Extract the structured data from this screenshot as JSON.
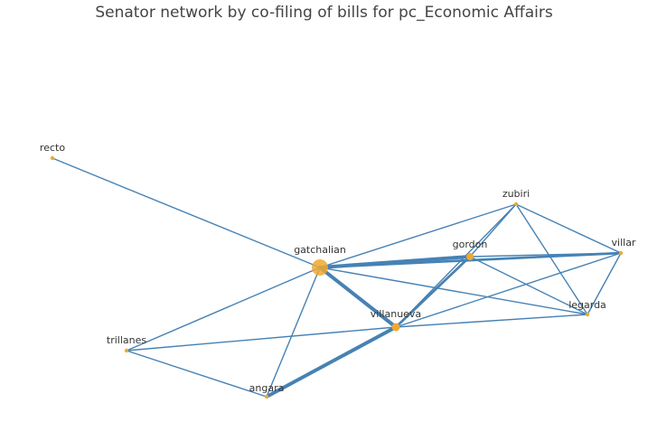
{
  "title": "Senator network by co-filing of bills for pc_Economic Affairs",
  "colors": {
    "edge": "#4682b4",
    "node": "#f0a830",
    "label": "#333333",
    "title": "#444444"
  },
  "nodes": [
    {
      "id": "recto",
      "label": "recto",
      "weight": 1
    },
    {
      "id": "gatchalian",
      "label": "gatchalian",
      "weight": 5
    },
    {
      "id": "zubiri",
      "label": "zubiri",
      "weight": 1
    },
    {
      "id": "gordon",
      "label": "gordon",
      "weight": 2
    },
    {
      "id": "villar",
      "label": "villar",
      "weight": 1
    },
    {
      "id": "legarda",
      "label": "legarda",
      "weight": 1
    },
    {
      "id": "villanueva",
      "label": "villanueva",
      "weight": 3
    },
    {
      "id": "trillanes",
      "label": "trillanes",
      "weight": 1
    },
    {
      "id": "angara",
      "label": "angara",
      "weight": 1
    }
  ],
  "edges": [
    {
      "source": "recto",
      "target": "gatchalian",
      "weight": 1
    },
    {
      "source": "gatchalian",
      "target": "zubiri",
      "weight": 1
    },
    {
      "source": "gatchalian",
      "target": "gordon",
      "weight": 3
    },
    {
      "source": "gatchalian",
      "target": "villar",
      "weight": 2
    },
    {
      "source": "gatchalian",
      "target": "legarda",
      "weight": 1
    },
    {
      "source": "gatchalian",
      "target": "villanueva",
      "weight": 3
    },
    {
      "source": "gatchalian",
      "target": "trillanes",
      "weight": 1
    },
    {
      "source": "gatchalian",
      "target": "angara",
      "weight": 1
    },
    {
      "source": "zubiri",
      "target": "gordon",
      "weight": 1
    },
    {
      "source": "zubiri",
      "target": "villar",
      "weight": 1
    },
    {
      "source": "zubiri",
      "target": "legarda",
      "weight": 1
    },
    {
      "source": "zubiri",
      "target": "villanueva",
      "weight": 1
    },
    {
      "source": "gordon",
      "target": "villar",
      "weight": 1
    },
    {
      "source": "gordon",
      "target": "legarda",
      "weight": 1
    },
    {
      "source": "gordon",
      "target": "villanueva",
      "weight": 2
    },
    {
      "source": "villar",
      "target": "legarda",
      "weight": 1
    },
    {
      "source": "villar",
      "target": "villanueva",
      "weight": 1
    },
    {
      "source": "legarda",
      "target": "villanueva",
      "weight": 1
    },
    {
      "source": "villanueva",
      "target": "trillanes",
      "weight": 1
    },
    {
      "source": "villanueva",
      "target": "angara",
      "weight": 3
    },
    {
      "source": "trillanes",
      "target": "angara",
      "weight": 1
    }
  ]
}
